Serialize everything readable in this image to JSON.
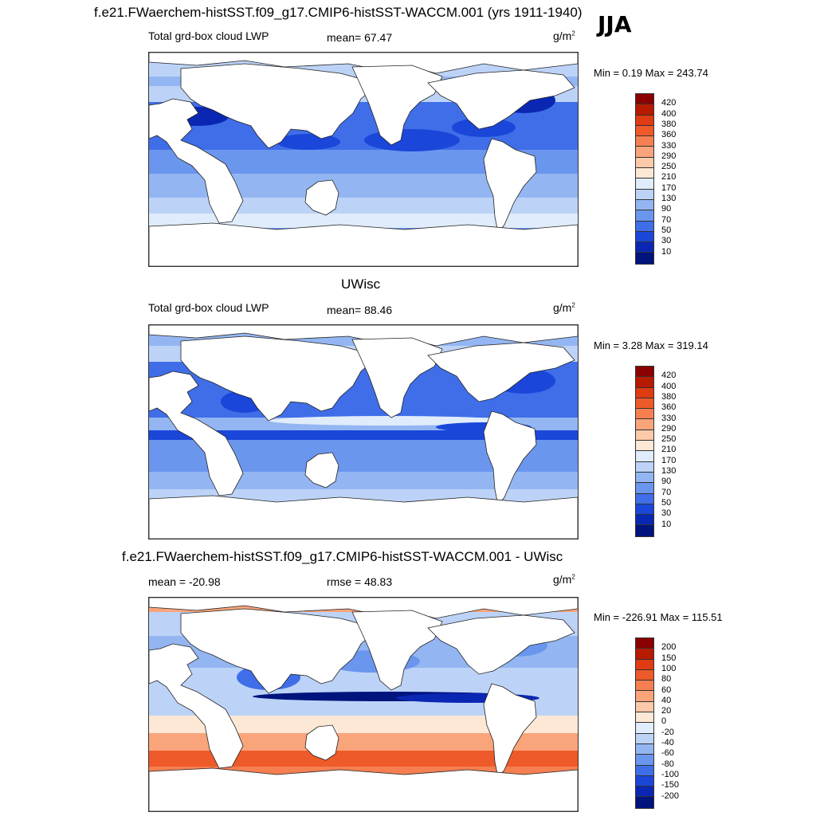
{
  "header": {
    "main_title": "f.e21.FWaerchem-histSST.f09_g17.CMIP6-histSST-WACCM.001 (yrs 1911-1940)",
    "season": "JJA"
  },
  "panels": [
    {
      "id": "model",
      "section_title": "",
      "left_label": "Total grd-box cloud LWP",
      "center_label": "mean=  67.47",
      "units_base": "g/m",
      "units_exp": "2",
      "minmax": "Min =   0.19 Max = 243.74",
      "colorbar_ticks": [
        "420",
        "400",
        "380",
        "360",
        "330",
        "290",
        "250",
        "210",
        "170",
        "130",
        "90",
        "70",
        "50",
        "30",
        "10"
      ],
      "colorbar_colors": [
        "#8b0000",
        "#b81a00",
        "#e03b12",
        "#ef5a2a",
        "#f57f51",
        "#f9a47b",
        "#fcc9a9",
        "#fde8d5",
        "#e0ecfb",
        "#bcd3f7",
        "#93b6f2",
        "#6b96ee",
        "#3f6ee8",
        "#1a47d9",
        "#0a27b4",
        "#00147e"
      ],
      "chart_data": {
        "type": "heatmap",
        "title": "Total grd-box cloud LWP",
        "mean": 67.47,
        "min": 0.19,
        "max": 243.74,
        "units": "g/m2",
        "levels": [
          10,
          30,
          50,
          70,
          90,
          130,
          170,
          210,
          250,
          290,
          330,
          360,
          380,
          400,
          420
        ]
      }
    },
    {
      "id": "obs",
      "section_title": "UWisc",
      "left_label": "Total grd-box cloud LWP",
      "center_label": "mean=  88.46",
      "units_base": "g/m",
      "units_exp": "2",
      "minmax": "Min =   3.28 Max = 319.14",
      "colorbar_ticks": [
        "420",
        "400",
        "380",
        "360",
        "330",
        "290",
        "250",
        "210",
        "170",
        "130",
        "90",
        "70",
        "50",
        "30",
        "10"
      ],
      "colorbar_colors": [
        "#8b0000",
        "#b81a00",
        "#e03b12",
        "#ef5a2a",
        "#f57f51",
        "#f9a47b",
        "#fcc9a9",
        "#fde8d5",
        "#e0ecfb",
        "#bcd3f7",
        "#93b6f2",
        "#6b96ee",
        "#3f6ee8",
        "#1a47d9",
        "#0a27b4",
        "#00147e"
      ],
      "chart_data": {
        "type": "heatmap",
        "title": "Total grd-box cloud LWP",
        "mean": 88.46,
        "min": 3.28,
        "max": 319.14,
        "units": "g/m2",
        "levels": [
          10,
          30,
          50,
          70,
          90,
          130,
          170,
          210,
          250,
          290,
          330,
          360,
          380,
          400,
          420
        ]
      }
    },
    {
      "id": "diff",
      "section_title": "f.e21.FWaerchem-histSST.f09_g17.CMIP6-histSST-WACCM.001 - UWisc",
      "left_label": "mean = -20.98",
      "center_label": "rmse =  48.83",
      "units_base": "g/m",
      "units_exp": "2",
      "minmax": "Min = -226.91 Max = 115.51",
      "colorbar_ticks": [
        "200",
        "150",
        "100",
        "80",
        "60",
        "40",
        "20",
        "0",
        "-20",
        "-40",
        "-60",
        "-80",
        "-100",
        "-150",
        "-200"
      ],
      "colorbar_colors": [
        "#8b0000",
        "#b81a00",
        "#e03b12",
        "#ef5a2a",
        "#f57f51",
        "#f9a47b",
        "#fcc9a9",
        "#fde8d5",
        "#e0ecfb",
        "#bcd3f7",
        "#93b6f2",
        "#6b96ee",
        "#3f6ee8",
        "#1a47d9",
        "#0a27b4",
        "#00147e"
      ],
      "chart_data": {
        "type": "heatmap",
        "title": "",
        "mean": -20.98,
        "rmse": 48.83,
        "min": -226.91,
        "max": 115.51,
        "units": "g/m2",
        "levels": [
          -200,
          -150,
          -100,
          -80,
          -60,
          -40,
          -20,
          0,
          20,
          40,
          60,
          80,
          100,
          150,
          200
        ]
      }
    }
  ]
}
